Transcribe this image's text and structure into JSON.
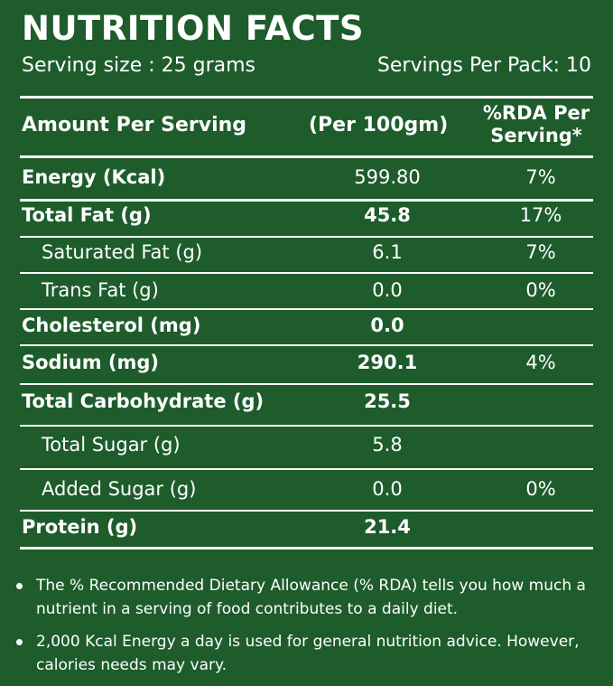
{
  "title": "NUTRITION FACTS",
  "serving_size": "Serving size : 25 grams",
  "servings_per_pack": "Servings Per Pack: 10",
  "header": {
    "amount": "Amount Per Serving",
    "per100": "(Per 100gm)",
    "rda_line1": "%RDA Per",
    "rda_line2": "Serving*"
  },
  "rows": [
    {
      "name": "Energy (Kcal)",
      "value": "599.80",
      "rda": "7%"
    },
    {
      "name": "Total Fat (g)",
      "value": "45.8",
      "rda": "17%"
    },
    {
      "name": "Saturated Fat (g)",
      "value": "6.1",
      "rda": "7%"
    },
    {
      "name": "Trans Fat (g)",
      "value": "0.0",
      "rda": "0%"
    },
    {
      "name": "Cholesterol (mg)",
      "value": "0.0",
      "rda": ""
    },
    {
      "name": "Sodium  (mg)",
      "value": "290.1",
      "rda": "4%"
    },
    {
      "name": "Total Carbohydrate (g)",
      "value": "25.5",
      "rda": ""
    },
    {
      "name": "Total Sugar (g)",
      "value": "5.8",
      "rda": ""
    },
    {
      "name": "Added Sugar (g)",
      "value": "0.0",
      "rda": "0%"
    },
    {
      "name": "Protein (g)",
      "value": "21.4",
      "rda": ""
    }
  ],
  "notes": [
    "The % Recommended Dietary Allowance (% RDA) tells you how much a nutrient in a serving of food contributes to a daily diet.",
    "2,000 Kcal Energy a day is used for general nutrition advice. However, calories needs may vary."
  ],
  "colors": {
    "background": "#1e5c2c",
    "text": "#ffffff"
  }
}
